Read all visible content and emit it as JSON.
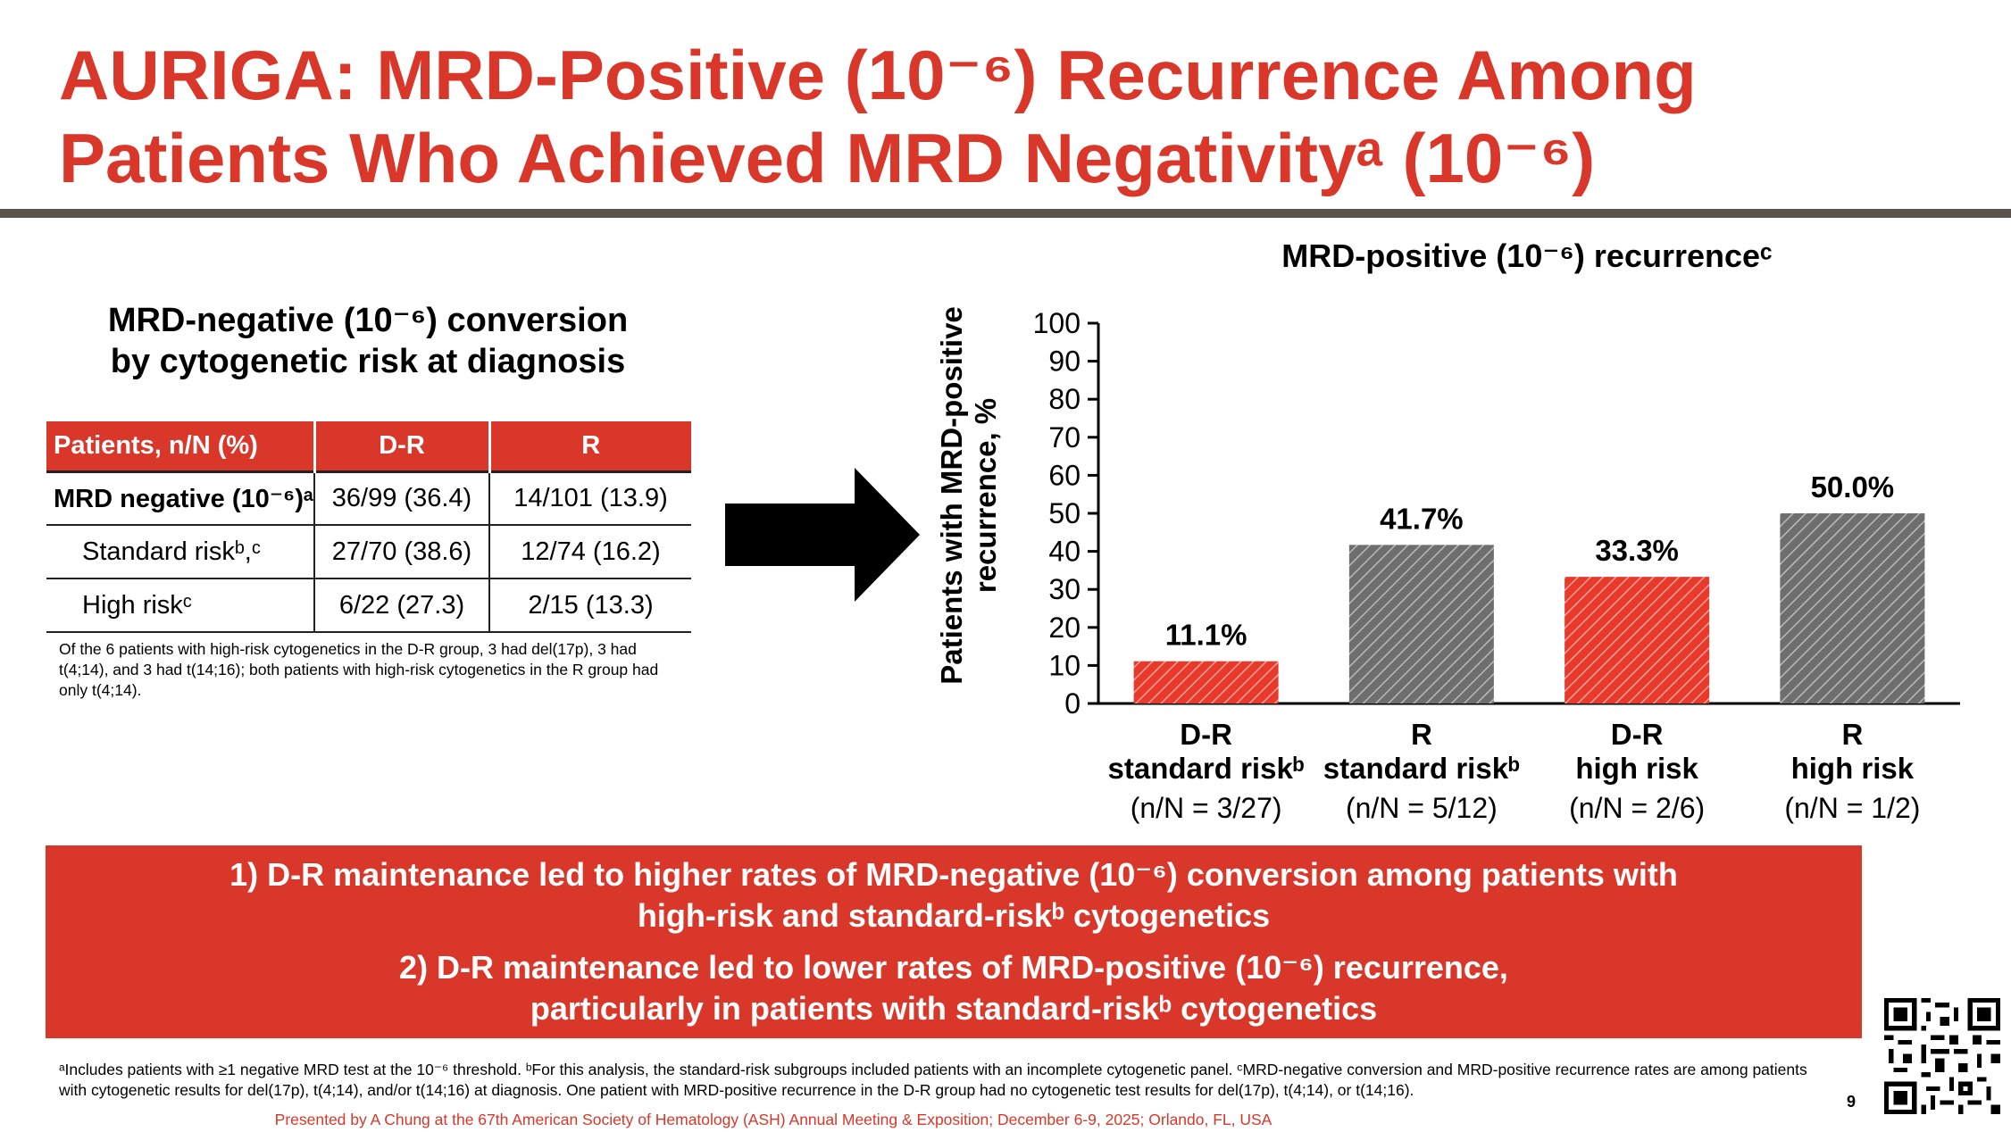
{
  "slide": {
    "title_line1": "AURIGA: MRD-Positive (10⁻⁶) Recurrence Among",
    "title_line2": "Patients Who Achieved MRD Negativityᵃ (10⁻⁶)",
    "page_number": "9"
  },
  "table": {
    "title_line1": "MRD-negative (10⁻⁶) conversion",
    "title_line2": "by cytogenetic risk at diagnosis",
    "headers": [
      "Patients, n/N (%)",
      "D-R",
      "R"
    ],
    "rows": [
      {
        "label": "MRD negative (10⁻⁶)ᵃ",
        "dr": "36/99 (36.4)",
        "r": "14/101 (13.9)"
      },
      {
        "label": "Standard riskᵇ,ᶜ",
        "dr": "27/70 (38.6)",
        "r": "12/74 (16.2)"
      },
      {
        "label": "High riskᶜ",
        "dr": "6/22 (27.3)",
        "r": "2/15 (13.3)"
      }
    ],
    "note": "Of the 6 patients with high-risk cytogenetics in the D-R group, 3 had del(17p), 3 had t(4;14), and 3 had t(14;16); both patients with high-risk cytogenetics in the R group had only t(4;14)."
  },
  "chart_data": {
    "type": "bar",
    "title": "MRD-positive (10⁻⁶) recurrenceᶜ",
    "ylabel_line1": "Patients with MRD-positive",
    "ylabel_line2": "recurrence, %",
    "ylim": [
      0,
      100
    ],
    "yticks": [
      0,
      10,
      20,
      30,
      40,
      50,
      60,
      70,
      80,
      90,
      100
    ],
    "grid": false,
    "categories": [
      {
        "line1": "D-R",
        "line2": "standard riskᵇ",
        "line3": "(n/N = 3/27)",
        "group": "D-R"
      },
      {
        "line1": "R",
        "line2": "standard riskᵇ",
        "line3": "(n/N = 5/12)",
        "group": "R"
      },
      {
        "line1": "D-R",
        "line2": "high risk",
        "line3": "(n/N = 2/6)",
        "group": "D-R"
      },
      {
        "line1": "R",
        "line2": "high risk",
        "line3": "(n/N = 1/2)",
        "group": "R"
      }
    ],
    "values": [
      11.1,
      41.7,
      33.3,
      50.0
    ],
    "data_labels": [
      "11.1%",
      "41.7%",
      "33.3%",
      "50.0%"
    ],
    "colors": {
      "D-R": "#e8392b",
      "R": "#6e6e6e"
    }
  },
  "summary": {
    "item1_line1": "1)   D-R maintenance led to higher rates of MRD-negative (10⁻⁶) conversion among patients with",
    "item1_line2": "high-risk and standard-riskᵇ cytogenetics",
    "item2_line1": "2)   D-R maintenance led to lower rates of MRD-positive (10⁻⁶) recurrence,",
    "item2_line2": "particularly in patients with standard-riskᵇ cytogenetics"
  },
  "footnote": "ᵃIncludes patients with ≥1 negative MRD test at the 10⁻⁶ threshold. ᵇFor this analysis, the standard-risk subgroups included patients with an incomplete cytogenetic panel. ᶜMRD-negative conversion and MRD-positive recurrence rates are among patients with cytogenetic results for del(17p), t(4;14), and/or t(14;16) at diagnosis. One patient with MRD-positive recurrence in the D-R group had no cytogenetic test results for del(17p), t(4;14), or t(14;16).",
  "presented_by": "Presented by A Chung at the 67th American Society of Hematology (ASH) Annual Meeting & Exposition; December 6-9, 2025; Orlando, FL, USA",
  "colors": {
    "accent_red": "#d9372a",
    "rule_gray": "#5a534e"
  }
}
